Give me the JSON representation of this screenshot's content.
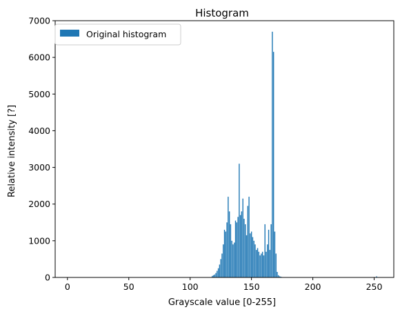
{
  "chart_data": {
    "type": "bar",
    "title": "Histogram",
    "xlabel": "Grayscale value [0-255]",
    "ylabel": "Relative intensity [?]",
    "xlim": [
      -10,
      266
    ],
    "ylim": [
      0,
      7000
    ],
    "xticks": [
      "0",
      "50",
      "100",
      "150",
      "200",
      "250"
    ],
    "xtick_values": [
      0,
      50,
      100,
      150,
      200,
      250
    ],
    "yticks": [
      "0",
      "1000",
      "2000",
      "3000",
      "4000",
      "5000",
      "6000",
      "7000"
    ],
    "ytick_values": [
      0,
      1000,
      2000,
      3000,
      4000,
      5000,
      6000,
      7000
    ],
    "grid": false,
    "legend_position": "top-left",
    "bar_color": "#1f77b4",
    "series": [
      {
        "name": "Original histogram",
        "x": [
          118,
          119,
          120,
          121,
          122,
          123,
          124,
          125,
          126,
          127,
          128,
          129,
          130,
          131,
          132,
          133,
          134,
          135,
          136,
          137,
          138,
          139,
          140,
          141,
          142,
          143,
          144,
          145,
          146,
          147,
          148,
          149,
          150,
          151,
          152,
          153,
          154,
          155,
          156,
          157,
          158,
          159,
          160,
          161,
          162,
          163,
          164,
          165,
          166,
          167,
          168,
          169,
          170,
          171,
          172,
          173,
          174,
          175,
          176,
          177,
          252
        ],
        "values": [
          40,
          60,
          80,
          120,
          180,
          250,
          350,
          500,
          650,
          900,
          1300,
          1250,
          1500,
          2200,
          1800,
          1450,
          1000,
          900,
          950,
          1550,
          1500,
          1650,
          3100,
          1700,
          1800,
          2150,
          1600,
          1450,
          1150,
          1950,
          2200,
          1200,
          1250,
          1100,
          1000,
          900,
          750,
          800,
          700,
          600,
          650,
          700,
          600,
          1450,
          700,
          900,
          1300,
          750,
          1450,
          6700,
          6150,
          1250,
          650,
          150,
          60,
          30,
          20,
          10,
          5,
          3,
          30
        ]
      }
    ]
  }
}
